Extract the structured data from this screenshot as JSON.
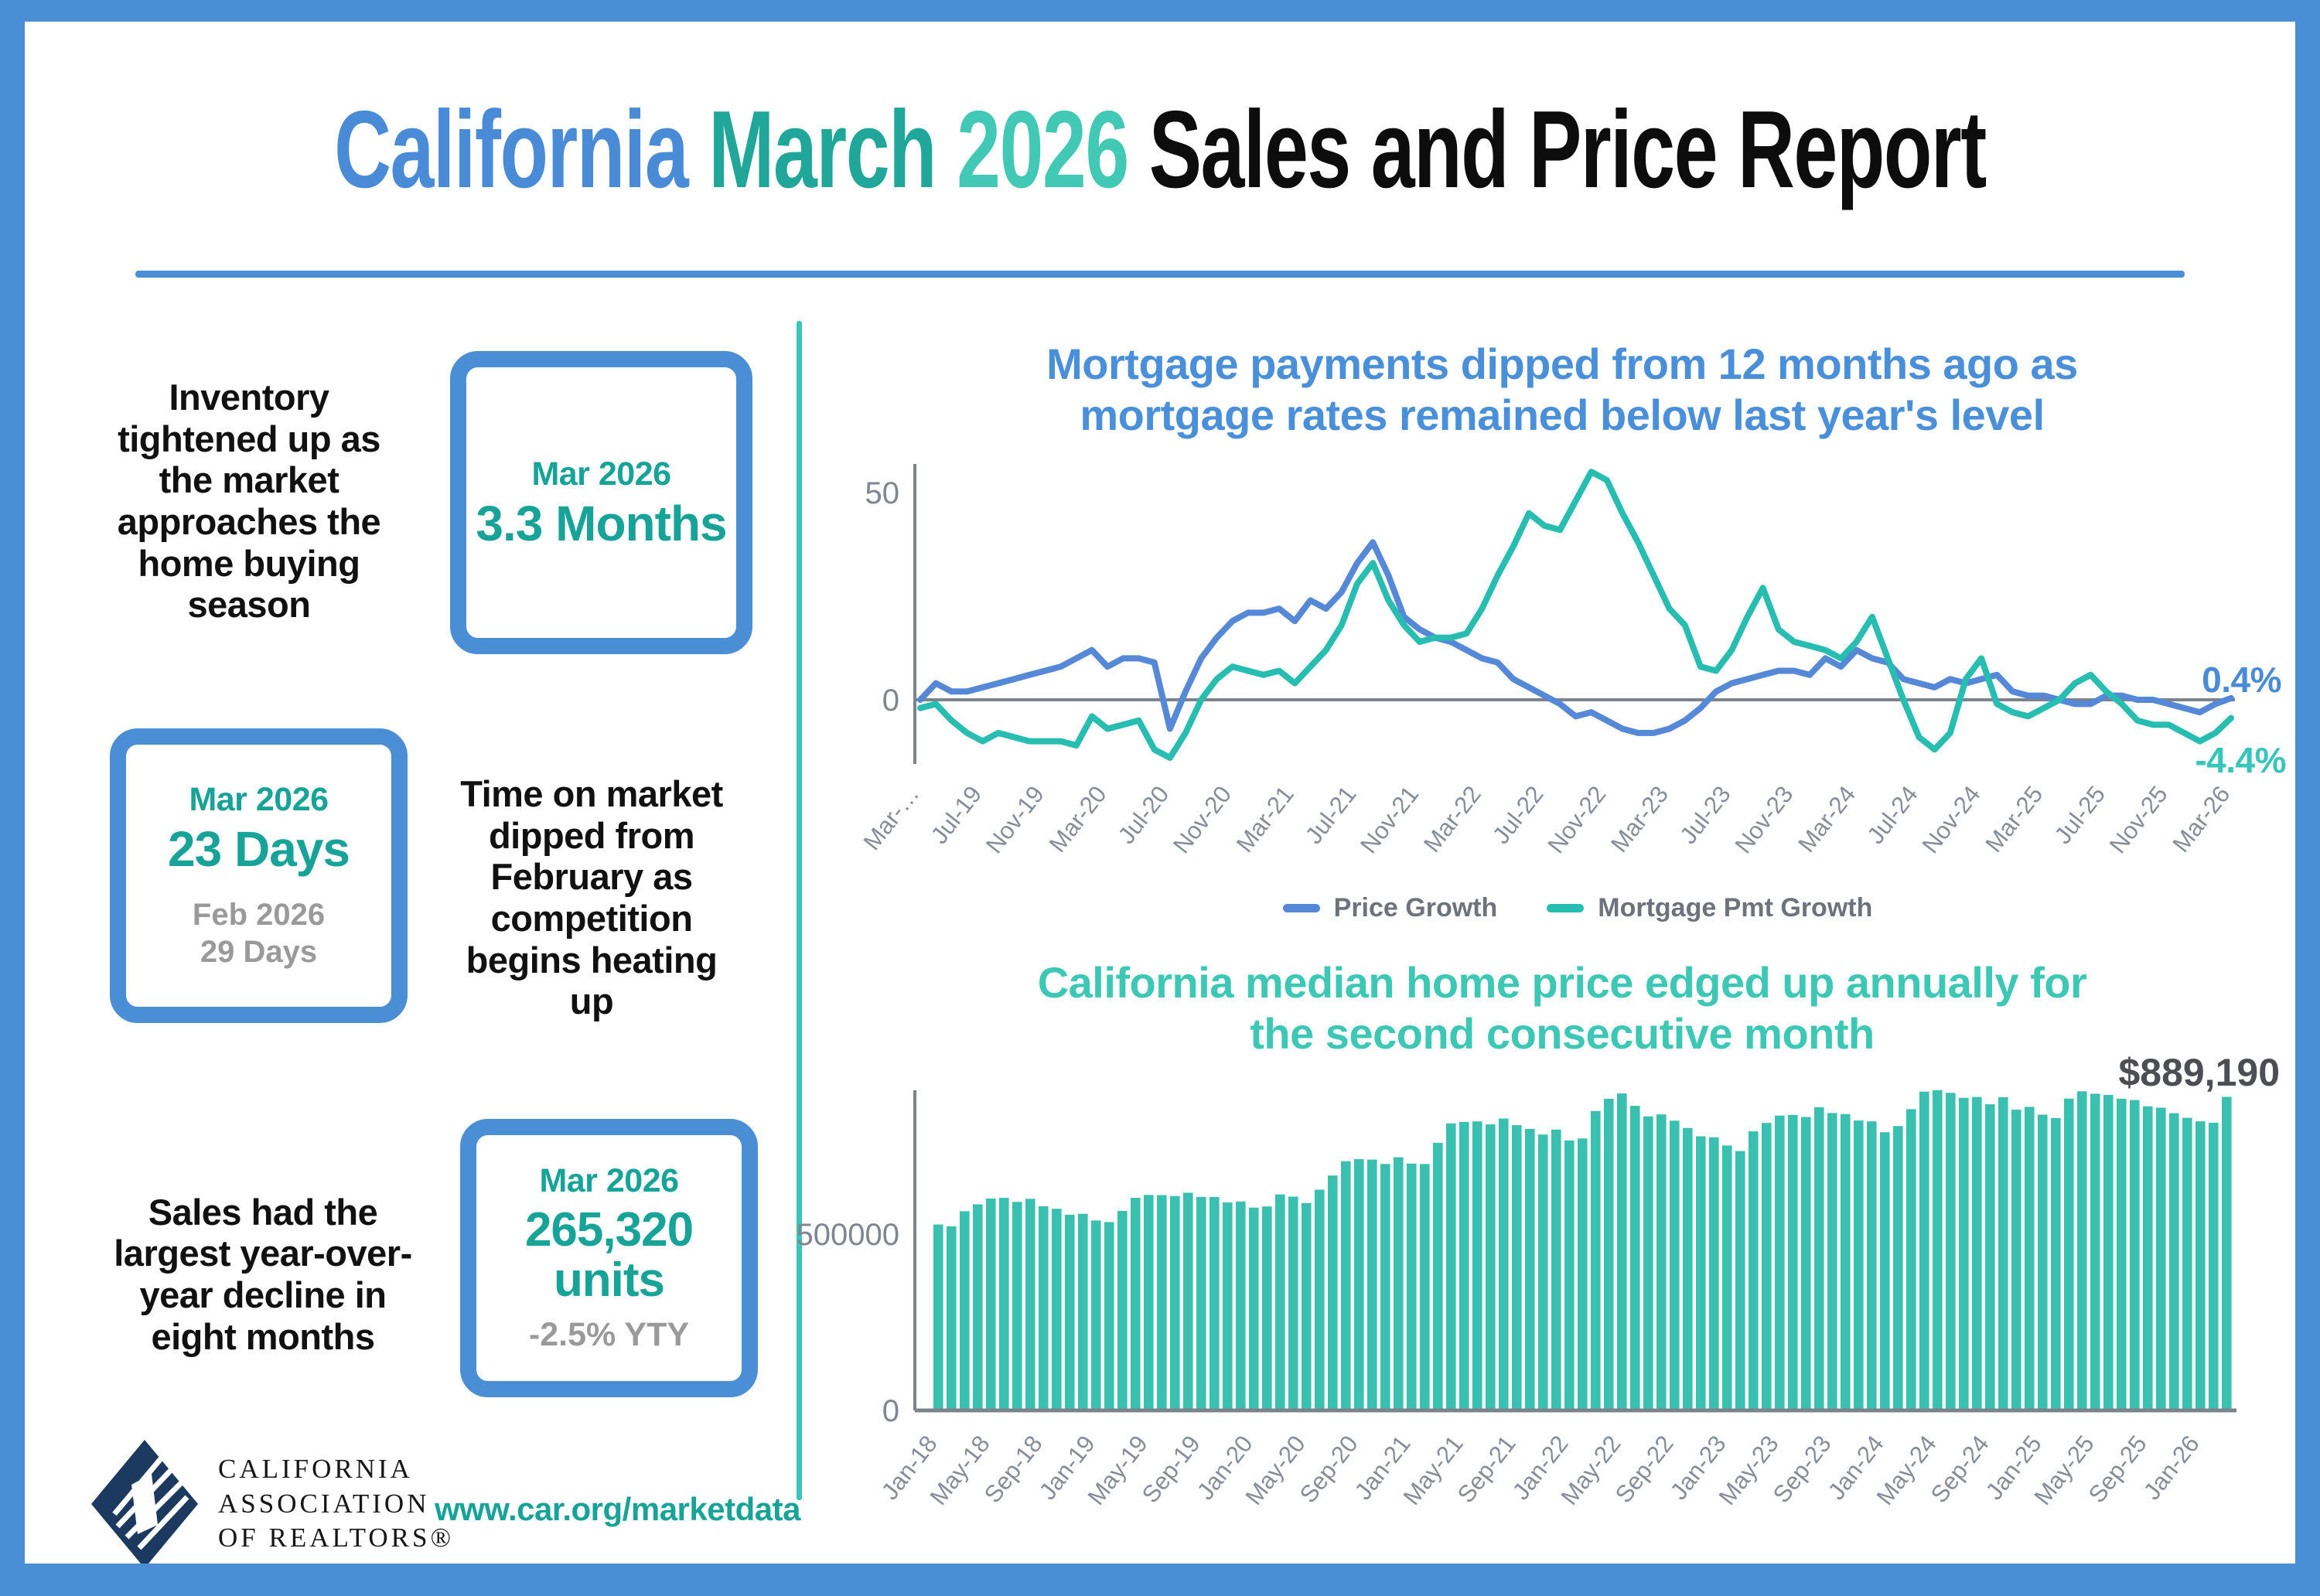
{
  "title": {
    "part_california": "California",
    "part_month": "March",
    "part_year": "2026",
    "part_rest": "Sales and Price Report"
  },
  "stats": [
    {
      "text": "Inventory tightened up as the market approaches the home buying season",
      "box": {
        "period": "Mar 2026",
        "value": "3.3 Months"
      }
    },
    {
      "text": "Time on market dipped from February as competition begins heating up",
      "box": {
        "period": "Mar 2026",
        "value": "23 Days",
        "prev_period": "Feb 2026",
        "prev_value": "29 Days"
      }
    },
    {
      "text": "Sales had the largest year-over-year decline in eight months",
      "box": {
        "period": "Mar 2026",
        "value": "265,320 units",
        "sub": "-2.5% YTY"
      }
    }
  ],
  "footer": {
    "logo_line1": "California",
    "logo_line2": "Association",
    "logo_line3": "of Realtors®",
    "url": "www.car.org/marketdata"
  },
  "colors": {
    "accent_blue": "#4a8ed6",
    "title_blue": "#4a8bd8",
    "title_teal_dark": "#20a79a",
    "title_teal_light": "#41c9b6",
    "stat_teal": "#17a398",
    "stat_gray": "#9a9a9a",
    "divider_teal": "#38c6ba",
    "axis_gray": "#7d838d",
    "logo_navy": "#1c3a60"
  },
  "chart_data": [
    {
      "type": "line",
      "title": "Mortgage payments dipped from 12 months ago as mortgage rates remained below last year's level",
      "title_line1": "Mortgage payments dipped from 12 months ago as",
      "title_line2": "mortgage rates remained below last year's level",
      "x_start": "Mar-2019",
      "x_end": "Mar-2026",
      "tick_every_months": 4,
      "x_tick_labels": [
        "Mar-…",
        "Jul-19",
        "Nov-19",
        "Mar-20",
        "Jul-20",
        "Nov-20",
        "Mar-21",
        "Jul-21",
        "Nov-21",
        "Mar-22",
        "Jul-22",
        "Nov-22",
        "Mar-23",
        "Jul-23",
        "Nov-23",
        "Mar-24",
        "Jul-24",
        "Nov-24",
        "Mar-25",
        "Jul-25",
        "Nov-25",
        "Mar-26"
      ],
      "ylim": [
        -16,
        58
      ],
      "yticks": [
        {
          "value": 50,
          "label": "50"
        },
        {
          "value": 0,
          "label": "0"
        }
      ],
      "legend_position": "bottom",
      "grid": false,
      "series": [
        {
          "name": "Price Growth",
          "color": "#5589d8",
          "end_label": "0.4%",
          "values": [
            0,
            4,
            2,
            2,
            3,
            4,
            5,
            6,
            7,
            8,
            10,
            12,
            8,
            10,
            10,
            9,
            -7,
            2,
            10,
            15,
            19,
            21,
            21,
            22,
            19,
            24,
            22,
            26,
            33,
            38,
            30,
            20,
            17,
            15,
            14,
            12,
            10,
            9,
            5,
            3,
            1,
            -1,
            -4,
            -3,
            -5,
            -7,
            -8,
            -8,
            -7,
            -5,
            -2,
            2,
            4,
            5,
            6,
            7,
            7,
            6,
            10,
            8,
            12,
            10,
            9,
            5,
            4,
            3,
            5,
            4,
            5,
            6,
            2,
            1,
            1,
            0,
            -1,
            -1,
            1,
            1,
            0,
            0,
            -1,
            -2,
            -3,
            -1,
            0.4
          ]
        },
        {
          "name": "Mortgage Pmt Growth",
          "color": "#27bdb0",
          "end_label": "-4.4%",
          "values": [
            -2,
            -1,
            -5,
            -8,
            -10,
            -8,
            -9,
            -10,
            -10,
            -10,
            -11,
            -4,
            -7,
            -6,
            -5,
            -12,
            -14,
            -8,
            0,
            5,
            8,
            7,
            6,
            7,
            4,
            8,
            12,
            18,
            28,
            33,
            24,
            18,
            14,
            15,
            15,
            16,
            22,
            30,
            37,
            45,
            42,
            41,
            48,
            55,
            53,
            45,
            38,
            30,
            22,
            18,
            8,
            7,
            12,
            20,
            27,
            17,
            14,
            13,
            12,
            10,
            14,
            20,
            10,
            0,
            -9,
            -12,
            -8,
            5,
            10,
            -1,
            -3,
            -4,
            -2,
            0,
            4,
            6,
            2,
            -1,
            -5,
            -6,
            -6,
            -8,
            -10,
            -8,
            -4.4
          ]
        }
      ]
    },
    {
      "type": "bar",
      "title": "California median home price edged up annually for the second consecutive month",
      "title_line1": "California median home price edged up annually for",
      "title_line2": "the second consecutive month",
      "annotation": "$889,190",
      "bar_color": "#3ac0b1",
      "x_start": "Jan-2018",
      "x_end": "Mar-2026",
      "tick_every_months": 4,
      "x_tick_labels": [
        "Jan-18",
        "May-18",
        "Sep-18",
        "Jan-19",
        "May-19",
        "Sep-19",
        "Jan-20",
        "May-20",
        "Sep-20",
        "Jan-21",
        "May-21",
        "Sep-21",
        "Jan-22",
        "May-22",
        "Sep-22",
        "Jan-23",
        "May-23",
        "Sep-23",
        "Jan-24",
        "May-24",
        "Sep-24",
        "Jan-25",
        "May-25",
        "Sep-25",
        "Jan-26"
      ],
      "ylim": [
        0,
        1000000
      ],
      "yticks": [
        {
          "value": 500000,
          "label": "500000"
        },
        {
          "value": 0,
          "label": "0"
        }
      ],
      "grid": false,
      "values": [
        527250,
        522000,
        564830,
        584460,
        600860,
        602760,
        591460,
        600150,
        578850,
        572000,
        554760,
        557600,
        538690,
        534140,
        565880,
        602920,
        611190,
        610720,
        607990,
        617410,
        605680,
        605280,
        589770,
        592450,
        575160,
        578530,
        612440,
        606410,
        588070,
        626170,
        666320,
        706900,
        712430,
        711300,
        699000,
        717930,
        699920,
        699000,
        758990,
        813980,
        818260,
        819630,
        811170,
        827940,
        808890,
        798440,
        782480,
        796570,
        765580,
        771270,
        849080,
        884090,
        898980,
        863790,
        833910,
        839460,
        821680,
        801190,
        777500,
        774580,
        751330,
        735480,
        791490,
        815340,
        836110,
        838260,
        832340,
        859800,
        843340,
        840360,
        822200,
        819740,
        788940,
        806490,
        854490,
        904190,
        908040,
        900720,
        886560,
        888740,
        868150,
        888480,
        852880,
        861020,
        838850,
        829060,
        884350,
        905000,
        898000,
        895000,
        884050,
        880250,
        862510,
        858600,
        843000,
        829720,
        820000,
        816000,
        889190
      ]
    }
  ]
}
